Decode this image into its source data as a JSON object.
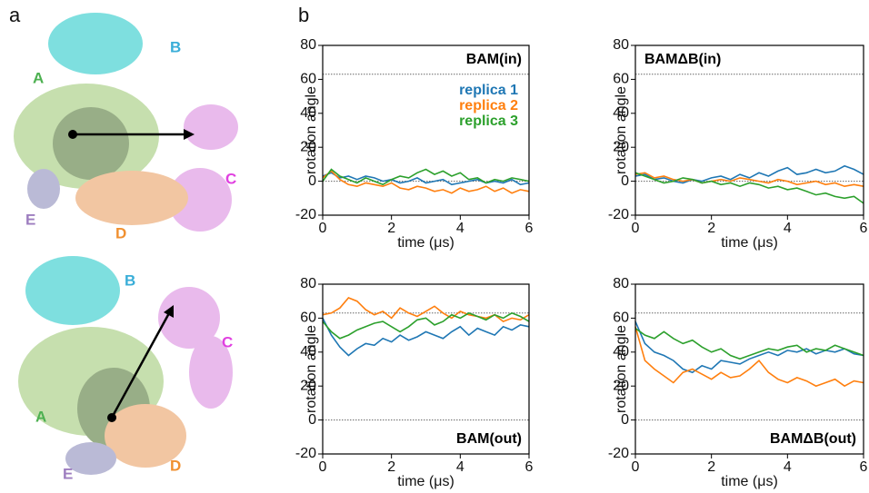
{
  "panel_labels": [
    "a",
    "b"
  ],
  "structures": [
    {
      "labels": [
        "B",
        "A",
        "C",
        "E",
        "D"
      ]
    },
    {
      "labels": [
        "B",
        "C",
        "A",
        "E",
        "D"
      ]
    }
  ],
  "chart_data": [
    {
      "type": "line",
      "title": "BAM(in)",
      "x_label": "time (μs)",
      "y_label": "rotation angle",
      "xlim": [
        0,
        6
      ],
      "xticks": [
        0,
        2,
        4,
        6
      ],
      "ylim": [
        -20,
        80
      ],
      "yticks": [
        -20,
        0,
        20,
        40,
        60,
        80
      ],
      "reference_lines": [
        63,
        0
      ],
      "x": [
        0,
        0.25,
        0.5,
        0.75,
        1,
        1.25,
        1.5,
        1.75,
        2,
        2.25,
        2.5,
        2.75,
        3,
        3.25,
        3.5,
        3.75,
        4,
        4.25,
        4.5,
        4.75,
        5,
        5.25,
        5.5,
        5.75,
        6
      ],
      "series": [
        {
          "name": "replica 1",
          "color": "#1f77b4",
          "values": [
            3,
            5,
            2,
            3,
            1,
            3,
            2,
            0,
            1,
            -1,
            0,
            2,
            -1,
            0,
            1,
            -2,
            -1,
            0,
            1,
            -1,
            0,
            -1,
            1,
            -2,
            -1
          ]
        },
        {
          "name": "replica 2",
          "color": "#ff7f0e",
          "values": [
            2,
            6,
            1,
            -2,
            -3,
            -1,
            -2,
            -3,
            -1,
            -4,
            -5,
            -3,
            -4,
            -6,
            -5,
            -7,
            -4,
            -6,
            -5,
            -3,
            -6,
            -4,
            -7,
            -5,
            -6
          ]
        },
        {
          "name": "replica 3",
          "color": "#2ca02c",
          "values": [
            0,
            7,
            3,
            1,
            -1,
            2,
            0,
            -2,
            1,
            3,
            2,
            5,
            7,
            4,
            6,
            3,
            5,
            1,
            2,
            -1,
            1,
            0,
            2,
            1,
            0
          ]
        }
      ]
    },
    {
      "type": "line",
      "title": "BAMΔB(in)",
      "x_label": "time (μs)",
      "y_label": "rotation angle",
      "xlim": [
        0,
        6
      ],
      "xticks": [
        0,
        2,
        4,
        6
      ],
      "ylim": [
        -20,
        80
      ],
      "yticks": [
        -20,
        0,
        20,
        40,
        60,
        80
      ],
      "reference_lines": [
        63,
        0
      ],
      "x": [
        0,
        0.25,
        0.5,
        0.75,
        1,
        1.25,
        1.5,
        1.75,
        2,
        2.25,
        2.5,
        2.75,
        3,
        3.25,
        3.5,
        3.75,
        4,
        4.25,
        4.5,
        4.75,
        5,
        5.25,
        5.5,
        5.75,
        6
      ],
      "series": [
        {
          "color": "#1f77b4",
          "values": [
            3,
            4,
            1,
            2,
            0,
            -1,
            1,
            0,
            2,
            3,
            1,
            4,
            2,
            5,
            3,
            6,
            8,
            4,
            5,
            7,
            5,
            6,
            9,
            7,
            4
          ]
        },
        {
          "color": "#ff7f0e",
          "values": [
            4,
            5,
            2,
            3,
            1,
            0,
            1,
            -1,
            0,
            1,
            0,
            2,
            1,
            0,
            -1,
            1,
            0,
            -2,
            -1,
            0,
            -2,
            -1,
            -3,
            -2,
            -3
          ]
        },
        {
          "color": "#2ca02c",
          "values": [
            5,
            3,
            1,
            -1,
            0,
            2,
            1,
            -1,
            0,
            -2,
            -1,
            -3,
            -1,
            -2,
            -4,
            -3,
            -5,
            -4,
            -6,
            -8,
            -7,
            -9,
            -10,
            -9,
            -13
          ]
        }
      ]
    },
    {
      "type": "line",
      "title": "BAM(out)",
      "x_label": "time (μs)",
      "y_label": "rotation angle",
      "xlim": [
        0,
        6
      ],
      "xticks": [
        0,
        2,
        4,
        6
      ],
      "ylim": [
        -20,
        80
      ],
      "yticks": [
        -20,
        0,
        20,
        40,
        60,
        80
      ],
      "reference_lines": [
        63,
        0
      ],
      "x": [
        0,
        0.25,
        0.5,
        0.75,
        1,
        1.25,
        1.5,
        1.75,
        2,
        2.25,
        2.5,
        2.75,
        3,
        3.25,
        3.5,
        3.75,
        4,
        4.25,
        4.5,
        4.75,
        5,
        5.25,
        5.5,
        5.75,
        6
      ],
      "series": [
        {
          "color": "#1f77b4",
          "values": [
            60,
            50,
            43,
            38,
            42,
            45,
            44,
            48,
            46,
            50,
            47,
            49,
            52,
            50,
            48,
            52,
            55,
            50,
            54,
            52,
            50,
            55,
            53,
            56,
            55
          ]
        },
        {
          "color": "#ff7f0e",
          "values": [
            62,
            63,
            66,
            72,
            70,
            65,
            62,
            64,
            60,
            66,
            63,
            61,
            64,
            67,
            63,
            60,
            64,
            62,
            61,
            60,
            62,
            58,
            60,
            59,
            62
          ]
        },
        {
          "color": "#2ca02c",
          "values": [
            58,
            52,
            48,
            50,
            53,
            55,
            57,
            58,
            55,
            52,
            55,
            59,
            60,
            56,
            58,
            62,
            60,
            63,
            61,
            59,
            62,
            60,
            63,
            61,
            58
          ]
        }
      ]
    },
    {
      "type": "line",
      "title": "BAMΔB(out)",
      "x_label": "time (μs)",
      "y_label": "rotation angle",
      "xlim": [
        0,
        6
      ],
      "xticks": [
        0,
        2,
        4,
        6
      ],
      "ylim": [
        -20,
        80
      ],
      "yticks": [
        -20,
        0,
        20,
        40,
        60,
        80
      ],
      "reference_lines": [
        63,
        0
      ],
      "x": [
        0,
        0.25,
        0.5,
        0.75,
        1,
        1.25,
        1.5,
        1.75,
        2,
        2.25,
        2.5,
        2.75,
        3,
        3.25,
        3.5,
        3.75,
        4,
        4.25,
        4.5,
        4.75,
        5,
        5.25,
        5.5,
        5.75,
        6
      ],
      "series": [
        {
          "color": "#1f77b4",
          "values": [
            58,
            45,
            40,
            38,
            35,
            30,
            28,
            32,
            30,
            35,
            34,
            33,
            36,
            38,
            40,
            38,
            41,
            40,
            42,
            39,
            41,
            40,
            42,
            39,
            38
          ]
        },
        {
          "color": "#ff7f0e",
          "values": [
            55,
            35,
            30,
            26,
            22,
            28,
            30,
            27,
            24,
            28,
            25,
            26,
            30,
            35,
            28,
            24,
            22,
            25,
            23,
            20,
            22,
            24,
            20,
            23,
            22
          ]
        },
        {
          "color": "#2ca02c",
          "values": [
            54,
            50,
            48,
            52,
            48,
            45,
            47,
            43,
            40,
            42,
            38,
            36,
            38,
            40,
            42,
            41,
            43,
            44,
            40,
            42,
            41,
            44,
            42,
            40,
            38
          ]
        }
      ]
    }
  ]
}
